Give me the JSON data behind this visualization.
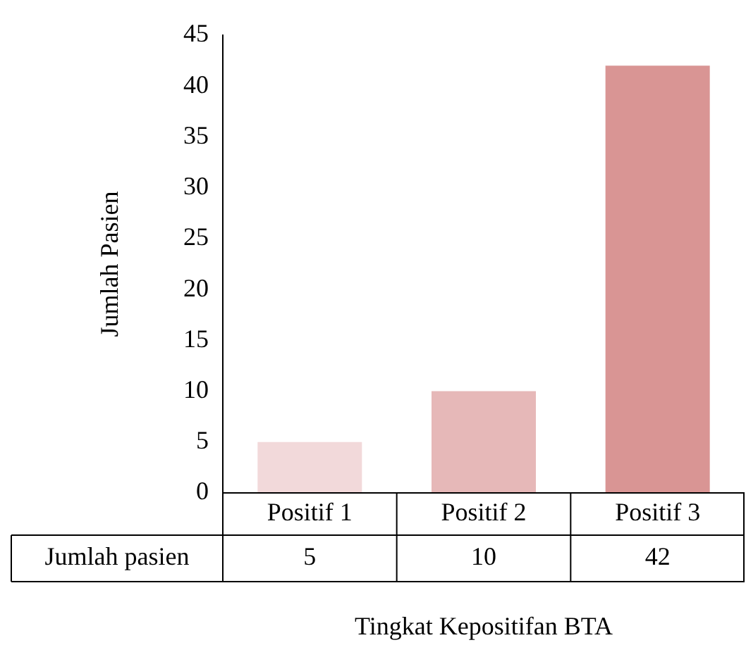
{
  "chart_data": {
    "type": "bar",
    "xlabel": "Tingkat Kepositifan BTA",
    "ylabel": "Jumlah Pasien",
    "categories": [
      "Positif 1",
      "Positif 2",
      "Positif 3"
    ],
    "series": [
      {
        "name": "Jumlah pasien",
        "colors": [
          "#f2d9da",
          "#e6b8b8",
          "#d99594"
        ],
        "values": [
          5,
          10,
          42
        ]
      }
    ],
    "ylim": [
      0,
      45
    ],
    "yticks": [
      0,
      5,
      10,
      15,
      20,
      25,
      30,
      35,
      40,
      45
    ],
    "grid": false,
    "legend": false,
    "data_labels": true
  }
}
